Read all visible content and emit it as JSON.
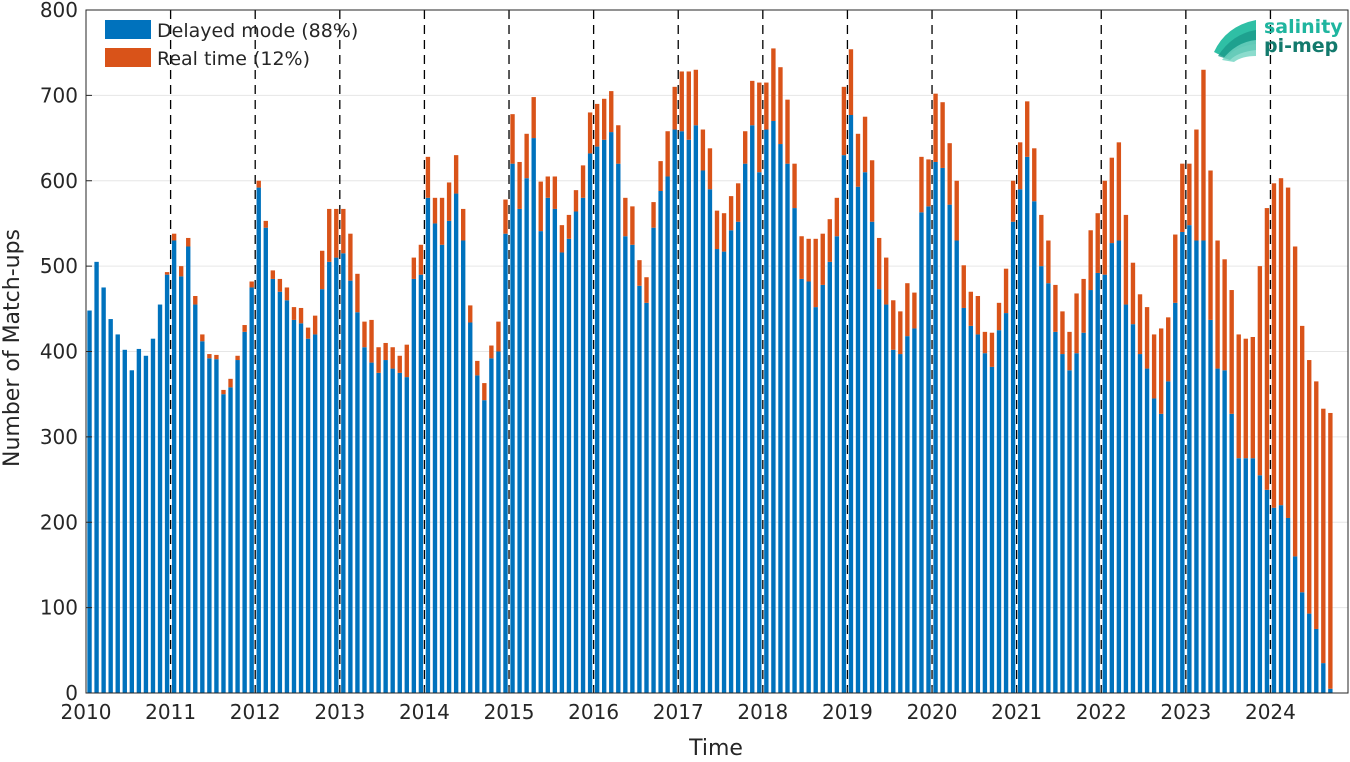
{
  "chart_data": {
    "type": "bar",
    "stacked": true,
    "xlabel": "Time",
    "ylabel": "Number of Match-ups",
    "ylim": [
      0,
      800
    ],
    "yticks": [
      0,
      100,
      200,
      300,
      400,
      500,
      600,
      700,
      800
    ],
    "xlim": [
      "2010-01",
      "2024-11"
    ],
    "xticks": [
      "2010",
      "2011",
      "2012",
      "2013",
      "2014",
      "2015",
      "2016",
      "2017",
      "2018",
      "2019",
      "2020",
      "2021",
      "2022",
      "2023",
      "2024"
    ],
    "year_separators": "dashed vertical lines at each year start",
    "grid": true,
    "legend_position": "top-left",
    "colors": {
      "delayed": "#0072BD",
      "realtime": "#D95319",
      "grid": "#e6e6e6",
      "axis": "#262626"
    },
    "logo": {
      "line1": "salinity",
      "line2": "pi-mep",
      "color": "#1a9a8a"
    },
    "series": [
      {
        "name": "Delayed mode (88%)",
        "values": [
          448,
          505,
          475,
          438,
          420,
          402,
          378,
          403,
          395,
          415,
          455,
          490,
          530,
          488,
          523,
          455,
          412,
          392,
          391,
          350,
          358,
          390,
          423,
          475,
          592,
          545,
          485,
          470,
          460,
          437,
          433,
          415,
          420,
          473,
          505,
          510,
          515,
          483,
          446,
          405,
          387,
          375,
          390,
          380,
          375,
          370,
          485,
          490,
          580,
          550,
          525,
          553,
          585,
          530,
          434,
          372,
          343,
          392,
          400,
          538,
          620,
          567,
          603,
          650,
          541,
          580,
          567,
          516,
          532,
          564,
          580,
          632,
          640,
          648,
          657,
          620,
          535,
          525,
          477,
          457,
          545,
          588,
          605,
          660,
          658,
          648,
          665,
          612,
          590,
          520,
          517,
          542,
          552,
          620,
          665,
          610,
          660,
          670,
          643,
          620,
          568,
          485,
          482,
          452,
          478,
          505,
          535,
          630,
          677,
          593,
          610,
          552,
          473,
          455,
          402,
          397,
          418,
          427,
          563,
          570,
          622,
          615,
          572,
          530,
          451,
          430,
          420,
          398,
          382,
          425,
          445,
          552,
          590,
          628,
          576,
          500,
          480,
          423,
          397,
          378,
          398,
          422,
          472,
          492,
          490,
          527,
          530,
          455,
          432,
          397,
          380,
          345,
          327,
          365,
          457,
          540,
          548,
          530,
          530,
          437,
          380,
          378,
          327,
          275,
          275,
          275,
          255,
          238,
          217,
          220,
          205,
          160,
          118,
          93,
          75,
          35,
          5
        ]
      },
      {
        "name": "Real time (12%)",
        "values": [
          0,
          0,
          0,
          0,
          0,
          0,
          0,
          0,
          0,
          0,
          0,
          3,
          8,
          12,
          10,
          10,
          8,
          5,
          5,
          5,
          10,
          5,
          8,
          7,
          8,
          8,
          10,
          15,
          15,
          15,
          18,
          13,
          22,
          45,
          62,
          57,
          52,
          55,
          45,
          30,
          50,
          30,
          20,
          25,
          20,
          38,
          25,
          35,
          48,
          30,
          55,
          45,
          45,
          37,
          20,
          17,
          20,
          15,
          35,
          40,
          58,
          55,
          52,
          48,
          58,
          25,
          38,
          32,
          28,
          25,
          38,
          48,
          50,
          48,
          48,
          45,
          45,
          45,
          30,
          30,
          30,
          35,
          53,
          50,
          70,
          80,
          65,
          48,
          48,
          45,
          45,
          40,
          45,
          38,
          52,
          105,
          55,
          85,
          90,
          75,
          52,
          50,
          50,
          80,
          60,
          50,
          45,
          80,
          77,
          62,
          65,
          72,
          60,
          55,
          58,
          50,
          62,
          42,
          65,
          55,
          80,
          77,
          72,
          70,
          50,
          40,
          45,
          25,
          40,
          32,
          52,
          48,
          55,
          65,
          62,
          60,
          50,
          55,
          50,
          45,
          70,
          63,
          70,
          70,
          110,
          100,
          115,
          105,
          72,
          70,
          72,
          75,
          100,
          75,
          80,
          80,
          72,
          130,
          200,
          175,
          150,
          130,
          145,
          145,
          140,
          142,
          245,
          330,
          380,
          383,
          387,
          363,
          312,
          297,
          290,
          298,
          323
        ]
      }
    ]
  }
}
